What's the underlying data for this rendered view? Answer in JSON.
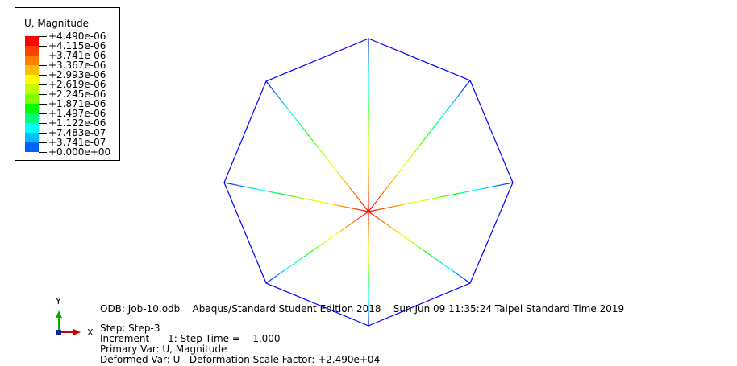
{
  "legend": {
    "title": "U, Magnitude",
    "entries": [
      {
        "label": "+4.490e-06",
        "color": "#ff0000"
      },
      {
        "label": "+4.115e-06",
        "color": "#ff4000"
      },
      {
        "label": "+3.741e-06",
        "color": "#ff8000"
      },
      {
        "label": "+3.367e-06",
        "color": "#ffbf00"
      },
      {
        "label": "+2.993e-06",
        "color": "#ffff00"
      },
      {
        "label": "+2.619e-06",
        "color": "#bfff00"
      },
      {
        "label": "+2.245e-06",
        "color": "#80ff00"
      },
      {
        "label": "+1.871e-06",
        "color": "#00ff00"
      },
      {
        "label": "+1.497e-06",
        "color": "#00ff80"
      },
      {
        "label": "+1.122e-06",
        "color": "#00ffff"
      },
      {
        "label": "+7.483e-07",
        "color": "#00bfff"
      },
      {
        "label": "+3.741e-07",
        "color": "#0060ff"
      },
      {
        "label": "+0.000e+00",
        "color": "#0000ff"
      }
    ]
  },
  "info": {
    "odb": "ODB: Job-10.odb    Abaqus/Standard Student Edition 2018    Sun Jun 09 11:35:24 Taipei Standard Time 2019",
    "step": "Step: Step-3",
    "increment": "Increment      1: Step Time =    1.000",
    "primary_var": "Primary Var: U, Magnitude",
    "deformed_var": "Deformed Var: U   Deformation Scale Factor: +2.490e+04"
  },
  "triad": {
    "y_label": "Y",
    "x_label": "X"
  },
  "colors": {
    "outline": "#0000ff",
    "center": "#ff0000",
    "axis_y": "#00b000",
    "axis_x": "#cc0000"
  }
}
